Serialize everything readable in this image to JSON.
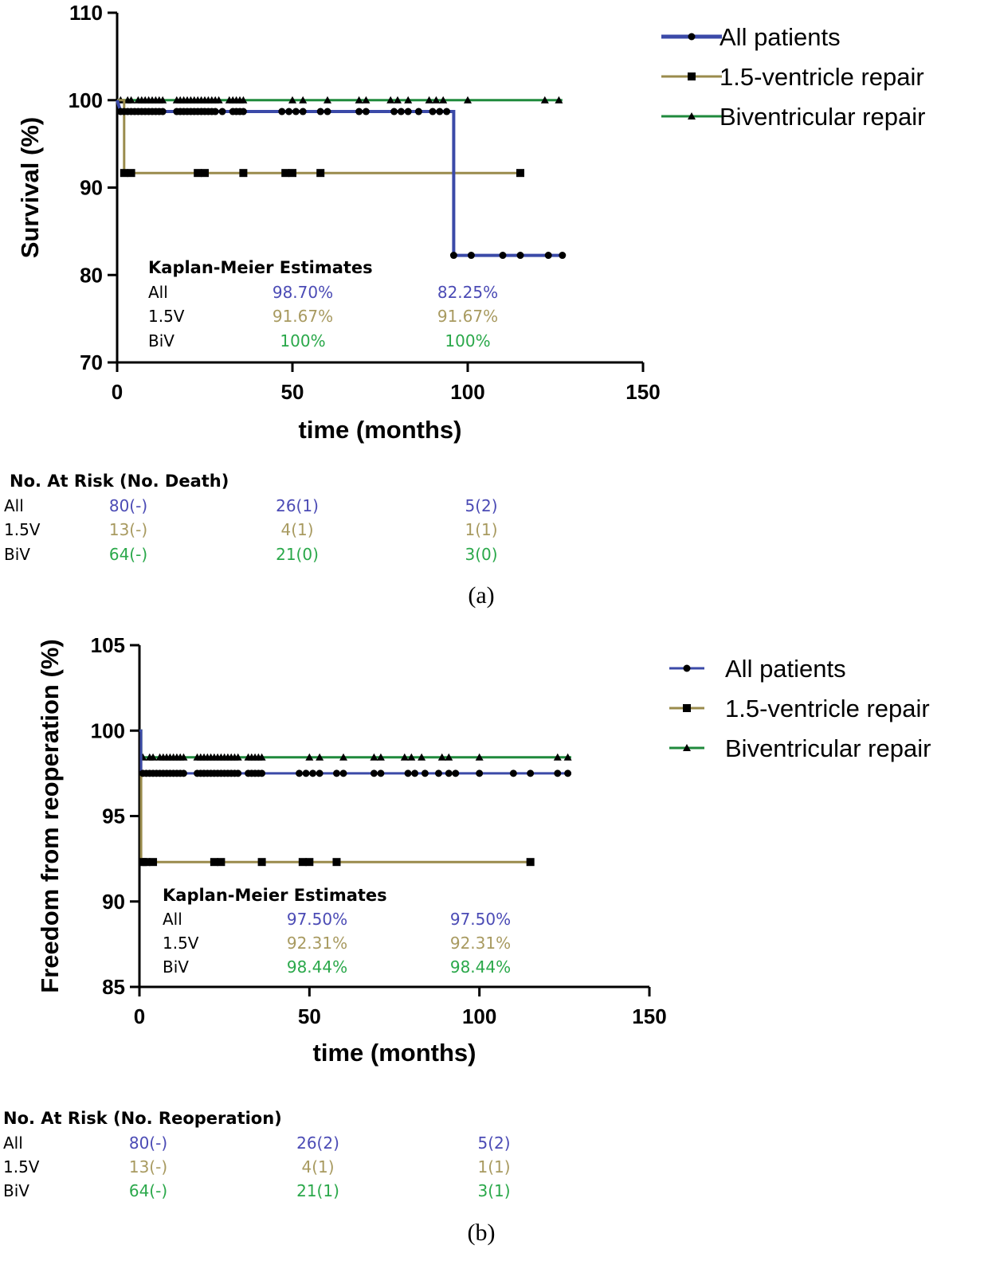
{
  "colors": {
    "all": "#3b4aa8",
    "v15": "#9a8b4c",
    "biv": "#1f8a3c",
    "marker": "#000000",
    "km_all": "#4b4bb5",
    "km_v15": "#a89a60",
    "km_biv": "#2aa84a"
  },
  "chart_data": [
    {
      "type": "line",
      "panel": "(a)",
      "xlabel": "time (months)",
      "ylabel": "Survival (%)",
      "xlim": [
        0,
        150
      ],
      "ylim": [
        70,
        110
      ],
      "xticks": [
        "0",
        "50",
        "100",
        "150"
      ],
      "yticks": [
        "70",
        "80",
        "90",
        "100",
        "110"
      ],
      "legend": "top-right",
      "series": [
        {
          "name": "All patients",
          "key": "all",
          "marker": "circle",
          "steps": [
            [
              0,
              100
            ],
            [
              1,
              98.7
            ],
            [
              96,
              98.7
            ],
            [
              96,
              82.25
            ],
            [
              127,
              82.25
            ]
          ],
          "censored": [
            [
              1,
              98.7
            ],
            [
              2,
              98.7
            ],
            [
              3,
              98.7
            ],
            [
              4,
              98.7
            ],
            [
              5,
              98.7
            ],
            [
              6,
              98.7
            ],
            [
              7,
              98.7
            ],
            [
              8,
              98.7
            ],
            [
              9,
              98.7
            ],
            [
              10,
              98.7
            ],
            [
              11,
              98.7
            ],
            [
              12,
              98.7
            ],
            [
              13,
              98.7
            ],
            [
              17,
              98.7
            ],
            [
              18,
              98.7
            ],
            [
              19,
              98.7
            ],
            [
              20,
              98.7
            ],
            [
              21,
              98.7
            ],
            [
              22,
              98.7
            ],
            [
              23,
              98.7
            ],
            [
              24,
              98.7
            ],
            [
              25,
              98.7
            ],
            [
              26,
              98.7
            ],
            [
              27,
              98.7
            ],
            [
              28,
              98.7
            ],
            [
              30,
              98.7
            ],
            [
              33,
              98.7
            ],
            [
              34,
              98.7
            ],
            [
              35,
              98.7
            ],
            [
              36,
              98.7
            ],
            [
              47,
              98.7
            ],
            [
              49,
              98.7
            ],
            [
              51,
              98.7
            ],
            [
              53,
              98.7
            ],
            [
              58,
              98.7
            ],
            [
              60,
              98.7
            ],
            [
              69,
              98.7
            ],
            [
              71,
              98.7
            ],
            [
              79,
              98.7
            ],
            [
              81,
              98.7
            ],
            [
              83,
              98.7
            ],
            [
              86,
              98.7
            ],
            [
              90,
              98.7
            ],
            [
              92,
              98.7
            ],
            [
              94,
              98.7
            ],
            [
              96,
              82.25
            ],
            [
              101,
              82.25
            ],
            [
              110,
              82.25
            ],
            [
              115,
              82.25
            ],
            [
              123,
              82.25
            ],
            [
              127,
              82.25
            ]
          ]
        },
        {
          "name": "1.5-ventricle repair",
          "key": "v15",
          "marker": "square",
          "steps": [
            [
              0,
              100
            ],
            [
              2,
              100
            ],
            [
              2,
              91.67
            ],
            [
              115,
              91.67
            ]
          ],
          "censored": [
            [
              2,
              91.67
            ],
            [
              4,
              91.67
            ],
            [
              23,
              91.67
            ],
            [
              25,
              91.67
            ],
            [
              36,
              91.67
            ],
            [
              48,
              91.67
            ],
            [
              50,
              91.67
            ],
            [
              58,
              91.67
            ],
            [
              115,
              91.67
            ]
          ]
        },
        {
          "name": "Biventricular repair",
          "key": "biv",
          "marker": "triangle",
          "steps": [
            [
              0,
              100
            ],
            [
              127,
              100
            ]
          ],
          "censored": [
            [
              1,
              100
            ],
            [
              3,
              100
            ],
            [
              4,
              100
            ],
            [
              6,
              100
            ],
            [
              7,
              100
            ],
            [
              8,
              100
            ],
            [
              9,
              100
            ],
            [
              10,
              100
            ],
            [
              11,
              100
            ],
            [
              12,
              100
            ],
            [
              13,
              100
            ],
            [
              17,
              100
            ],
            [
              18,
              100
            ],
            [
              19,
              100
            ],
            [
              20,
              100
            ],
            [
              21,
              100
            ],
            [
              22,
              100
            ],
            [
              23,
              100
            ],
            [
              24,
              100
            ],
            [
              25,
              100
            ],
            [
              26,
              100
            ],
            [
              27,
              100
            ],
            [
              28,
              100
            ],
            [
              29,
              100
            ],
            [
              32,
              100
            ],
            [
              33,
              100
            ],
            [
              34,
              100
            ],
            [
              35,
              100
            ],
            [
              36,
              100
            ],
            [
              50,
              100
            ],
            [
              53,
              100
            ],
            [
              60,
              100
            ],
            [
              69,
              100
            ],
            [
              71,
              100
            ],
            [
              78,
              100
            ],
            [
              80,
              100
            ],
            [
              83,
              100
            ],
            [
              89,
              100
            ],
            [
              91,
              100
            ],
            [
              93,
              100
            ],
            [
              100,
              100
            ],
            [
              122,
              100
            ],
            [
              126,
              100
            ]
          ]
        }
      ],
      "km_title": "Kaplan-Meier Estimates",
      "km_rows": [
        {
          "label": "All",
          "key": "all",
          "values": [
            "98.70%",
            "82.25%"
          ]
        },
        {
          "label": "1.5V",
          "key": "v15",
          "values": [
            "91.67%",
            "91.67%"
          ]
        },
        {
          "label": "BiV",
          "key": "biv",
          "values": [
            "100%",
            "100%"
          ]
        }
      ],
      "risk_title": "No. At Risk (No. Death)",
      "risk_rows": [
        {
          "label": "All",
          "key": "all",
          "values": [
            "80(-)",
            "26(1)",
            "5(2)"
          ]
        },
        {
          "label": "1.5V",
          "key": "v15",
          "values": [
            "13(-)",
            "4(1)",
            "1(1)"
          ]
        },
        {
          "label": "BiV",
          "key": "biv",
          "values": [
            "64(-)",
            "21(0)",
            "3(0)"
          ]
        }
      ]
    },
    {
      "type": "line",
      "panel": "(b)",
      "xlabel": "time (months)",
      "ylabel": "Freedom from reoperation (%)",
      "xlim": [
        0,
        150
      ],
      "ylim": [
        85,
        105
      ],
      "xticks": [
        "0",
        "50",
        "100",
        "150"
      ],
      "yticks": [
        "85",
        "90",
        "95",
        "100",
        "105"
      ],
      "legend": "top-right",
      "series": [
        {
          "name": "All patients",
          "key": "all",
          "marker": "circle",
          "steps": [
            [
              0,
              100
            ],
            [
              0.5,
              100
            ],
            [
              0.5,
              97.5
            ],
            [
              127,
              97.5
            ]
          ],
          "censored": [
            [
              1,
              97.5
            ],
            [
              2,
              97.5
            ],
            [
              3,
              97.5
            ],
            [
              4,
              97.5
            ],
            [
              5,
              97.5
            ],
            [
              6,
              97.5
            ],
            [
              7,
              97.5
            ],
            [
              8,
              97.5
            ],
            [
              9,
              97.5
            ],
            [
              10,
              97.5
            ],
            [
              11,
              97.5
            ],
            [
              12,
              97.5
            ],
            [
              13,
              97.5
            ],
            [
              17,
              97.5
            ],
            [
              18,
              97.5
            ],
            [
              19,
              97.5
            ],
            [
              20,
              97.5
            ],
            [
              21,
              97.5
            ],
            [
              22,
              97.5
            ],
            [
              23,
              97.5
            ],
            [
              24,
              97.5
            ],
            [
              25,
              97.5
            ],
            [
              26,
              97.5
            ],
            [
              27,
              97.5
            ],
            [
              28,
              97.5
            ],
            [
              29,
              97.5
            ],
            [
              32,
              97.5
            ],
            [
              33,
              97.5
            ],
            [
              34,
              97.5
            ],
            [
              35,
              97.5
            ],
            [
              36,
              97.5
            ],
            [
              47,
              97.5
            ],
            [
              49,
              97.5
            ],
            [
              51,
              97.5
            ],
            [
              53,
              97.5
            ],
            [
              58,
              97.5
            ],
            [
              60,
              97.5
            ],
            [
              69,
              97.5
            ],
            [
              71,
              97.5
            ],
            [
              79,
              97.5
            ],
            [
              81,
              97.5
            ],
            [
              84,
              97.5
            ],
            [
              88,
              97.5
            ],
            [
              91,
              97.5
            ],
            [
              93,
              97.5
            ],
            [
              100,
              97.5
            ],
            [
              110,
              97.5
            ],
            [
              115,
              97.5
            ],
            [
              123,
              97.5
            ],
            [
              126,
              97.5
            ]
          ]
        },
        {
          "name": "1.5-ventricle repair",
          "key": "v15",
          "marker": "square",
          "steps": [
            [
              0,
              100
            ],
            [
              0.5,
              100
            ],
            [
              0.5,
              92.31
            ],
            [
              115,
              92.31
            ]
          ],
          "censored": [
            [
              1,
              92.31
            ],
            [
              2,
              92.31
            ],
            [
              4,
              92.31
            ],
            [
              22,
              92.31
            ],
            [
              24,
              92.31
            ],
            [
              36,
              92.31
            ],
            [
              48,
              92.31
            ],
            [
              50,
              92.31
            ],
            [
              58,
              92.31
            ],
            [
              115,
              92.31
            ]
          ]
        },
        {
          "name": "Biventricular repair",
          "key": "biv",
          "marker": "triangle",
          "steps": [
            [
              0,
              100
            ],
            [
              0.5,
              100
            ],
            [
              0.5,
              98.44
            ],
            [
              127,
              98.44
            ]
          ],
          "censored": [
            [
              1,
              98.44
            ],
            [
              3,
              98.44
            ],
            [
              4,
              98.44
            ],
            [
              6,
              98.44
            ],
            [
              7,
              98.44
            ],
            [
              8,
              98.44
            ],
            [
              9,
              98.44
            ],
            [
              10,
              98.44
            ],
            [
              11,
              98.44
            ],
            [
              12,
              98.44
            ],
            [
              13,
              98.44
            ],
            [
              17,
              98.44
            ],
            [
              18,
              98.44
            ],
            [
              19,
              98.44
            ],
            [
              20,
              98.44
            ],
            [
              21,
              98.44
            ],
            [
              22,
              98.44
            ],
            [
              23,
              98.44
            ],
            [
              24,
              98.44
            ],
            [
              25,
              98.44
            ],
            [
              26,
              98.44
            ],
            [
              27,
              98.44
            ],
            [
              28,
              98.44
            ],
            [
              29,
              98.44
            ],
            [
              32,
              98.44
            ],
            [
              33,
              98.44
            ],
            [
              34,
              98.44
            ],
            [
              35,
              98.44
            ],
            [
              36,
              98.44
            ],
            [
              50,
              98.44
            ],
            [
              53,
              98.44
            ],
            [
              60,
              98.44
            ],
            [
              69,
              98.44
            ],
            [
              71,
              98.44
            ],
            [
              78,
              98.44
            ],
            [
              80,
              98.44
            ],
            [
              83,
              98.44
            ],
            [
              89,
              98.44
            ],
            [
              91,
              98.44
            ],
            [
              100,
              98.44
            ],
            [
              123,
              98.44
            ],
            [
              126,
              98.44
            ]
          ]
        }
      ],
      "km_title": "Kaplan-Meier Estimates",
      "km_rows": [
        {
          "label": "All",
          "key": "all",
          "values": [
            "97.50%",
            "97.50%"
          ]
        },
        {
          "label": "1.5V",
          "key": "v15",
          "values": [
            "92.31%",
            "92.31%"
          ]
        },
        {
          "label": "BiV",
          "key": "biv",
          "values": [
            "98.44%",
            "98.44%"
          ]
        }
      ],
      "risk_title": "No. At Risk (No. Reoperation)",
      "risk_rows": [
        {
          "label": "All",
          "key": "all",
          "values": [
            "80(-)",
            "26(2)",
            "5(2)"
          ]
        },
        {
          "label": "1.5V",
          "key": "v15",
          "values": [
            "13(-)",
            "4(1)",
            "1(1)"
          ]
        },
        {
          "label": "BiV",
          "key": "biv",
          "values": [
            "64(-)",
            "21(1)",
            "3(1)"
          ]
        }
      ]
    }
  ]
}
